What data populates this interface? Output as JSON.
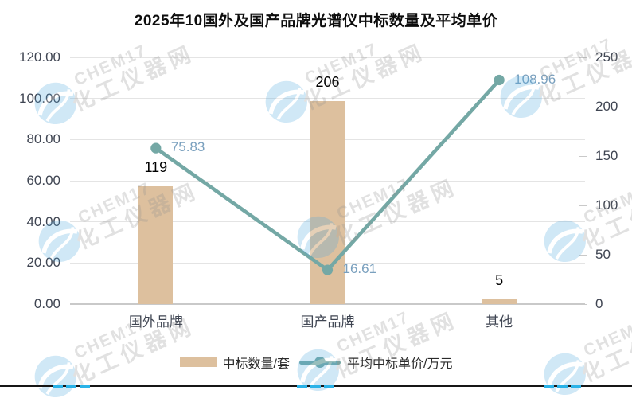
{
  "page": {
    "title": "2025年10国外及国产品牌光谱仪中标数量及平均单价"
  },
  "watermark": {
    "brand": "CHEM17",
    "site": "化工仪器网"
  },
  "chart_data": {
    "type": "combo-bar-line",
    "title": "2025年10国外及国产品牌光谱仪中标数量及平均单价",
    "categories": [
      "国外品牌",
      "国产品牌",
      "其他"
    ],
    "series": [
      {
        "name": "中标数量/套",
        "type": "bar",
        "axis": "right",
        "values": [
          119,
          206,
          5
        ],
        "color": "#ddc09e"
      },
      {
        "name": "平均中标单价/万元",
        "type": "line",
        "axis": "left",
        "values": [
          75.83,
          16.61,
          108.96
        ],
        "color": "#74a8a5"
      }
    ],
    "left_axis": {
      "min": 0,
      "max": 120,
      "tick_step": 20,
      "tick_labels": [
        "0.00",
        "20.00",
        "40.00",
        "60.00",
        "80.00",
        "100.00",
        "120.00"
      ]
    },
    "right_axis": {
      "min": 0,
      "max": 250,
      "tick_step": 50,
      "tick_labels": [
        "0",
        "50",
        "100",
        "150",
        "200",
        "250"
      ]
    },
    "grid": true,
    "legend_position": "bottom",
    "data_label_colors": {
      "bar": "#000000",
      "line": "#7aa0be"
    }
  }
}
